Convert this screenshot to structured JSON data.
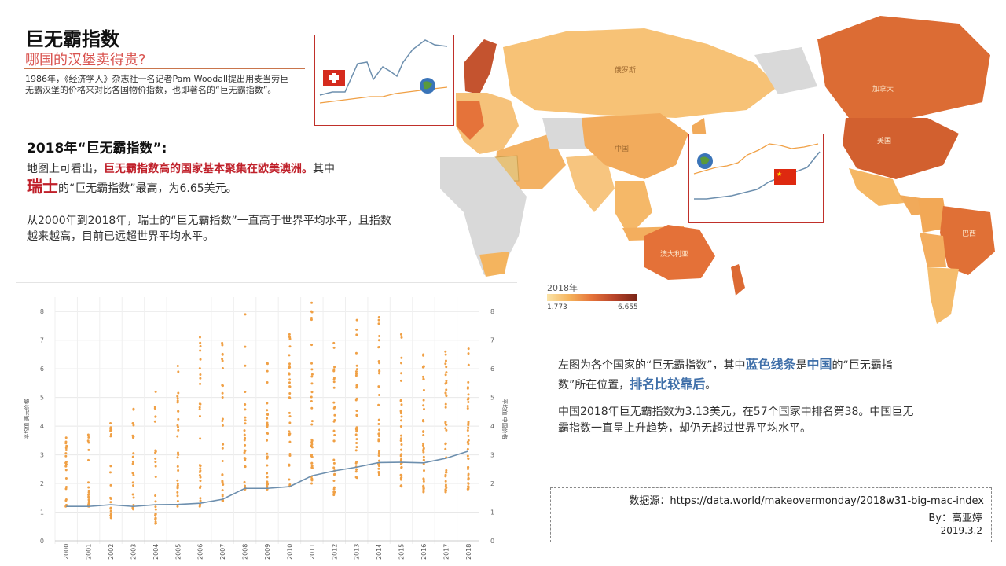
{
  "header": {
    "title": "巨无霸指数",
    "subtitle": "哪国的汉堡卖得贵?",
    "intro": "1986年，《经济学人》杂志社一名记者Pam Woodall提出用麦当劳巨无霸汉堡的价格来对比各国物价指数，也即著名的“巨无霸指数”。"
  },
  "section": {
    "heading": "2018年“巨无霸指数”:",
    "p1_pre": "地图上可看出，",
    "p1_highlight": "巨无霸指数高的国家基本聚集在欧美澳洲。",
    "p1_post": "其中",
    "p1_country": "瑞士",
    "p1_end": "的“巨无霸指数”最高，为6.65美元。",
    "p2": "从2000年到2018年，瑞士的“巨无霸指数”一直高于世界平均水平，且指数越来越高，目前已远超世界平均水平。"
  },
  "map": {
    "labels": [
      "俄罗斯",
      "加拿大",
      "美国",
      "中国",
      "澳大利亚",
      "巴西"
    ],
    "legend": {
      "title": "2018年",
      "min": "1.773",
      "max": "6.655"
    },
    "colors": {
      "low": "#fbe4a8",
      "mid": "#f5b35c",
      "high": "#e5733a",
      "top": "#b8442a",
      "unknown": "#d9d9d9"
    }
  },
  "right": {
    "t1_a": "左图为各个国家的“巨无霸指数”，其中",
    "t1_blue1": "蓝色线条",
    "t1_b": "是",
    "t1_blue2": "中国",
    "t1_c": "的“巨无霸指数”所在位置，",
    "t1_blue3": "排名比较靠后",
    "t1_d": "。",
    "t2": "中国2018年巨无霸指数为3.13美元，在57个国家中排名第38。中国巨无霸指数一直呈上升趋势，却仍无超过世界平均水平。"
  },
  "footer": {
    "source": "数据源：https://data.world/makeovermonday/2018w31-big-mac-index",
    "by": "By：高亚婷",
    "date": "2019.3.2"
  },
  "chart_data": {
    "type": "scatter",
    "x": [
      "2000",
      "2001",
      "2002",
      "2003",
      "2004",
      "2005",
      "2006",
      "2007",
      "2008",
      "2009",
      "2010",
      "2011",
      "2012",
      "2013",
      "2014",
      "2015",
      "2016",
      "2017",
      "2018"
    ],
    "ylim": [
      0,
      8.5
    ],
    "yticks": [
      "0",
      "1",
      "2",
      "3",
      "4",
      "5",
      "6",
      "7",
      "8"
    ],
    "ylabel_left": "平均值 美元价格",
    "ylabel_right": "平均值 中国价格",
    "series": [
      {
        "type": "scatter",
        "color": "#f0a045",
        "ranges": [
          [
            1.2,
            3.6
          ],
          [
            1.2,
            3.7
          ],
          [
            0.8,
            4.1
          ],
          [
            1.1,
            4.6
          ],
          [
            0.6,
            5.2
          ],
          [
            1.2,
            6.1
          ],
          [
            1.2,
            7.1
          ],
          [
            1.4,
            6.9
          ],
          [
            1.8,
            7.9
          ],
          [
            1.8,
            6.2
          ],
          [
            1.9,
            7.2
          ],
          [
            2.0,
            8.3
          ],
          [
            1.6,
            6.9
          ],
          [
            2.2,
            7.7
          ],
          [
            2.3,
            7.8
          ],
          [
            1.9,
            7.2
          ],
          [
            1.7,
            6.5
          ],
          [
            1.7,
            6.6
          ],
          [
            1.8,
            6.7
          ]
        ],
        "counts": [
          22,
          20,
          22,
          24,
          28,
          30,
          32,
          30,
          30,
          32,
          34,
          36,
          34,
          36,
          38,
          40,
          40,
          42,
          44
        ]
      },
      {
        "type": "line",
        "color": "#6d8fae",
        "values": [
          1.2,
          1.2,
          1.26,
          1.2,
          1.26,
          1.27,
          1.31,
          1.45,
          1.83,
          1.83,
          1.89,
          2.27,
          2.44,
          2.57,
          2.73,
          2.74,
          2.72,
          2.88,
          3.13
        ]
      }
    ]
  }
}
